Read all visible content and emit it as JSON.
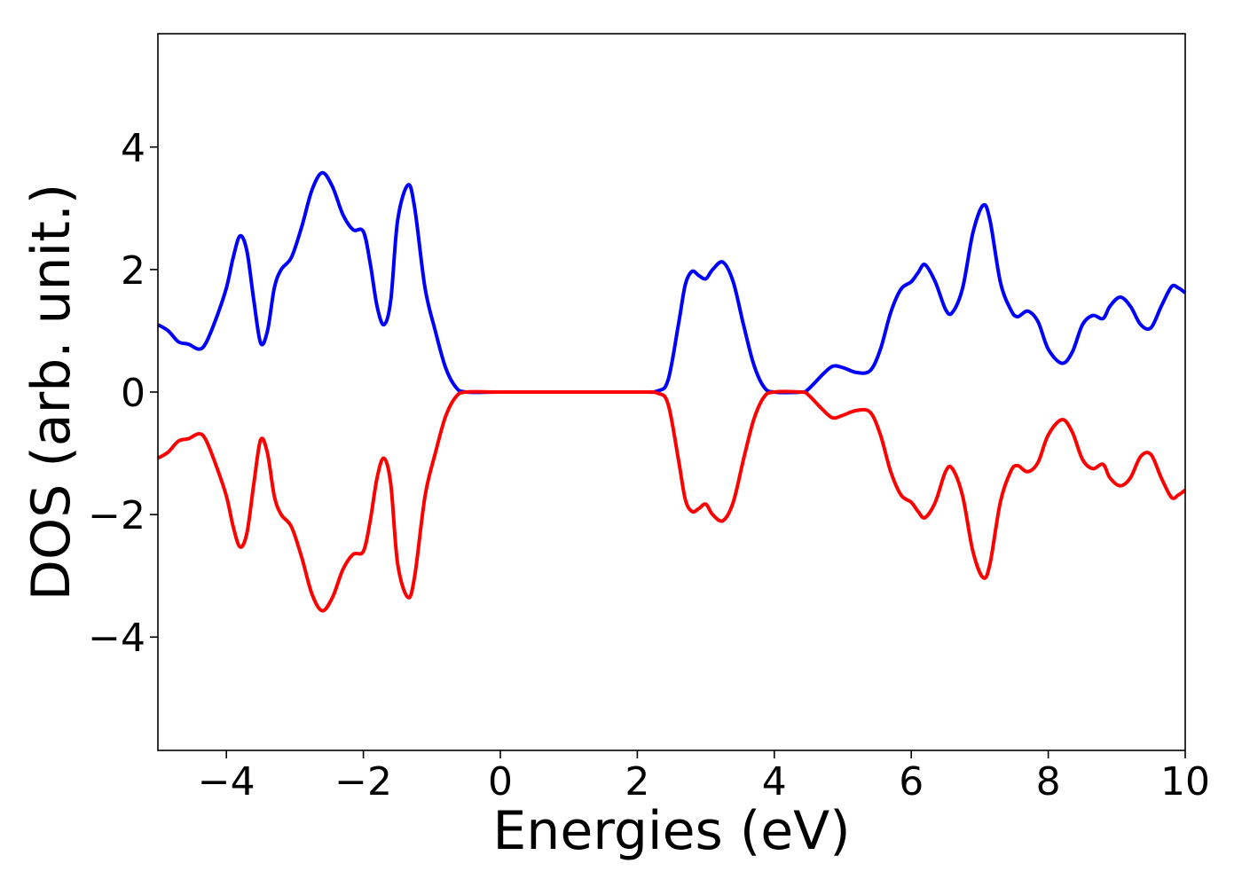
{
  "chart_data": {
    "type": "line",
    "xlabel": "Energies (eV)",
    "ylabel": "DOS (arb. unit.)",
    "xlim": [
      -5,
      10
    ],
    "ylim": [
      -5.85,
      5.85
    ],
    "xticks": [
      -4,
      -2,
      0,
      2,
      4,
      6,
      8,
      10
    ],
    "yticks": [
      -4,
      -2,
      0,
      2,
      4
    ],
    "grid": false,
    "series": [
      {
        "color": "#0000ff",
        "points": [
          [
            -5.0,
            1.1
          ],
          [
            -4.85,
            1.0
          ],
          [
            -4.7,
            0.82
          ],
          [
            -4.55,
            0.78
          ],
          [
            -4.4,
            0.7
          ],
          [
            -4.3,
            0.8
          ],
          [
            -4.15,
            1.2
          ],
          [
            -4.0,
            1.7
          ],
          [
            -3.9,
            2.2
          ],
          [
            -3.8,
            2.55
          ],
          [
            -3.7,
            2.3
          ],
          [
            -3.6,
            1.5
          ],
          [
            -3.5,
            0.8
          ],
          [
            -3.4,
            1.0
          ],
          [
            -3.3,
            1.7
          ],
          [
            -3.2,
            2.0
          ],
          [
            -3.05,
            2.2
          ],
          [
            -2.9,
            2.7
          ],
          [
            -2.75,
            3.3
          ],
          [
            -2.6,
            3.58
          ],
          [
            -2.45,
            3.35
          ],
          [
            -2.3,
            2.9
          ],
          [
            -2.15,
            2.65
          ],
          [
            -2.0,
            2.62
          ],
          [
            -1.9,
            2.1
          ],
          [
            -1.8,
            1.4
          ],
          [
            -1.7,
            1.1
          ],
          [
            -1.6,
            1.5
          ],
          [
            -1.5,
            2.8
          ],
          [
            -1.35,
            3.38
          ],
          [
            -1.25,
            3.0
          ],
          [
            -1.1,
            1.7
          ],
          [
            -0.95,
            1.0
          ],
          [
            -0.8,
            0.4
          ],
          [
            -0.65,
            0.08
          ],
          [
            -0.5,
            0.0
          ],
          [
            0.0,
            0.0
          ],
          [
            1.0,
            0.0
          ],
          [
            2.0,
            0.0
          ],
          [
            2.3,
            0.02
          ],
          [
            2.45,
            0.2
          ],
          [
            2.6,
            1.1
          ],
          [
            2.7,
            1.75
          ],
          [
            2.8,
            1.97
          ],
          [
            2.9,
            1.9
          ],
          [
            3.0,
            1.85
          ],
          [
            3.1,
            2.0
          ],
          [
            3.25,
            2.12
          ],
          [
            3.4,
            1.8
          ],
          [
            3.55,
            1.1
          ],
          [
            3.7,
            0.45
          ],
          [
            3.85,
            0.08
          ],
          [
            4.0,
            0.0
          ],
          [
            4.4,
            0.0
          ],
          [
            4.5,
            0.05
          ],
          [
            4.7,
            0.28
          ],
          [
            4.85,
            0.42
          ],
          [
            5.0,
            0.4
          ],
          [
            5.2,
            0.32
          ],
          [
            5.4,
            0.35
          ],
          [
            5.55,
            0.7
          ],
          [
            5.7,
            1.3
          ],
          [
            5.85,
            1.68
          ],
          [
            6.0,
            1.8
          ],
          [
            6.1,
            1.95
          ],
          [
            6.2,
            2.08
          ],
          [
            6.35,
            1.8
          ],
          [
            6.5,
            1.35
          ],
          [
            6.6,
            1.3
          ],
          [
            6.75,
            1.7
          ],
          [
            6.9,
            2.6
          ],
          [
            7.05,
            3.05
          ],
          [
            7.15,
            2.8
          ],
          [
            7.3,
            1.8
          ],
          [
            7.45,
            1.35
          ],
          [
            7.55,
            1.23
          ],
          [
            7.7,
            1.32
          ],
          [
            7.85,
            1.15
          ],
          [
            8.0,
            0.7
          ],
          [
            8.2,
            0.47
          ],
          [
            8.35,
            0.65
          ],
          [
            8.5,
            1.1
          ],
          [
            8.65,
            1.25
          ],
          [
            8.8,
            1.2
          ],
          [
            8.9,
            1.4
          ],
          [
            9.05,
            1.55
          ],
          [
            9.2,
            1.4
          ],
          [
            9.35,
            1.1
          ],
          [
            9.5,
            1.05
          ],
          [
            9.65,
            1.4
          ],
          [
            9.8,
            1.72
          ],
          [
            9.9,
            1.7
          ],
          [
            10.0,
            1.62
          ]
        ]
      },
      {
        "color": "#ff0000",
        "points": [
          [
            -5.0,
            -1.08
          ],
          [
            -4.85,
            -0.98
          ],
          [
            -4.7,
            -0.8
          ],
          [
            -4.55,
            -0.76
          ],
          [
            -4.4,
            -0.68
          ],
          [
            -4.3,
            -0.78
          ],
          [
            -4.15,
            -1.2
          ],
          [
            -4.0,
            -1.7
          ],
          [
            -3.9,
            -2.2
          ],
          [
            -3.8,
            -2.53
          ],
          [
            -3.7,
            -2.3
          ],
          [
            -3.6,
            -1.5
          ],
          [
            -3.5,
            -0.78
          ],
          [
            -3.4,
            -1.0
          ],
          [
            -3.3,
            -1.7
          ],
          [
            -3.2,
            -2.0
          ],
          [
            -3.05,
            -2.2
          ],
          [
            -2.9,
            -2.7
          ],
          [
            -2.75,
            -3.3
          ],
          [
            -2.6,
            -3.57
          ],
          [
            -2.45,
            -3.35
          ],
          [
            -2.3,
            -2.9
          ],
          [
            -2.15,
            -2.65
          ],
          [
            -2.0,
            -2.6
          ],
          [
            -1.9,
            -2.1
          ],
          [
            -1.8,
            -1.4
          ],
          [
            -1.7,
            -1.08
          ],
          [
            -1.6,
            -1.5
          ],
          [
            -1.5,
            -2.8
          ],
          [
            -1.35,
            -3.35
          ],
          [
            -1.25,
            -3.0
          ],
          [
            -1.1,
            -1.7
          ],
          [
            -0.95,
            -1.0
          ],
          [
            -0.8,
            -0.4
          ],
          [
            -0.65,
            -0.08
          ],
          [
            -0.5,
            0.0
          ],
          [
            0.0,
            0.0
          ],
          [
            1.0,
            0.0
          ],
          [
            2.0,
            0.0
          ],
          [
            2.3,
            -0.02
          ],
          [
            2.45,
            -0.2
          ],
          [
            2.6,
            -1.1
          ],
          [
            2.7,
            -1.75
          ],
          [
            2.8,
            -1.95
          ],
          [
            2.9,
            -1.9
          ],
          [
            3.0,
            -1.83
          ],
          [
            3.1,
            -2.0
          ],
          [
            3.25,
            -2.1
          ],
          [
            3.4,
            -1.8
          ],
          [
            3.55,
            -1.1
          ],
          [
            3.7,
            -0.45
          ],
          [
            3.85,
            -0.08
          ],
          [
            4.0,
            0.0
          ],
          [
            4.4,
            0.0
          ],
          [
            4.5,
            -0.05
          ],
          [
            4.7,
            -0.28
          ],
          [
            4.85,
            -0.42
          ],
          [
            5.0,
            -0.38
          ],
          [
            5.2,
            -0.3
          ],
          [
            5.4,
            -0.33
          ],
          [
            5.55,
            -0.7
          ],
          [
            5.7,
            -1.3
          ],
          [
            5.85,
            -1.68
          ],
          [
            6.0,
            -1.8
          ],
          [
            6.1,
            -1.95
          ],
          [
            6.2,
            -2.05
          ],
          [
            6.35,
            -1.8
          ],
          [
            6.5,
            -1.3
          ],
          [
            6.6,
            -1.25
          ],
          [
            6.75,
            -1.7
          ],
          [
            6.9,
            -2.6
          ],
          [
            7.05,
            -3.03
          ],
          [
            7.15,
            -2.8
          ],
          [
            7.3,
            -1.8
          ],
          [
            7.45,
            -1.3
          ],
          [
            7.55,
            -1.2
          ],
          [
            7.7,
            -1.3
          ],
          [
            7.85,
            -1.15
          ],
          [
            8.0,
            -0.7
          ],
          [
            8.2,
            -0.45
          ],
          [
            8.35,
            -0.65
          ],
          [
            8.5,
            -1.1
          ],
          [
            8.65,
            -1.25
          ],
          [
            8.8,
            -1.18
          ],
          [
            8.9,
            -1.4
          ],
          [
            9.05,
            -1.53
          ],
          [
            9.2,
            -1.4
          ],
          [
            9.35,
            -1.05
          ],
          [
            9.5,
            -1.02
          ],
          [
            9.65,
            -1.4
          ],
          [
            9.8,
            -1.72
          ],
          [
            9.9,
            -1.68
          ],
          [
            10.0,
            -1.6
          ]
        ]
      }
    ]
  }
}
